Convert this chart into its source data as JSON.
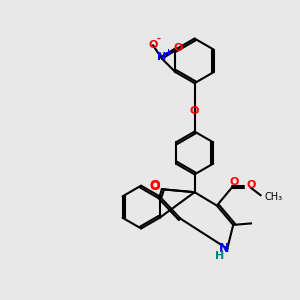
{
  "background_color": "#e8e8e8",
  "bond_color": "#000000",
  "title": "",
  "figsize": [
    3.0,
    3.0
  ],
  "dpi": 100,
  "atom_colors": {
    "O": "#ff0000",
    "N": "#0000ff",
    "H": "#008080",
    "C": "#000000",
    "N_plus": "#0000ff",
    "O_minus": "#ff0000"
  }
}
